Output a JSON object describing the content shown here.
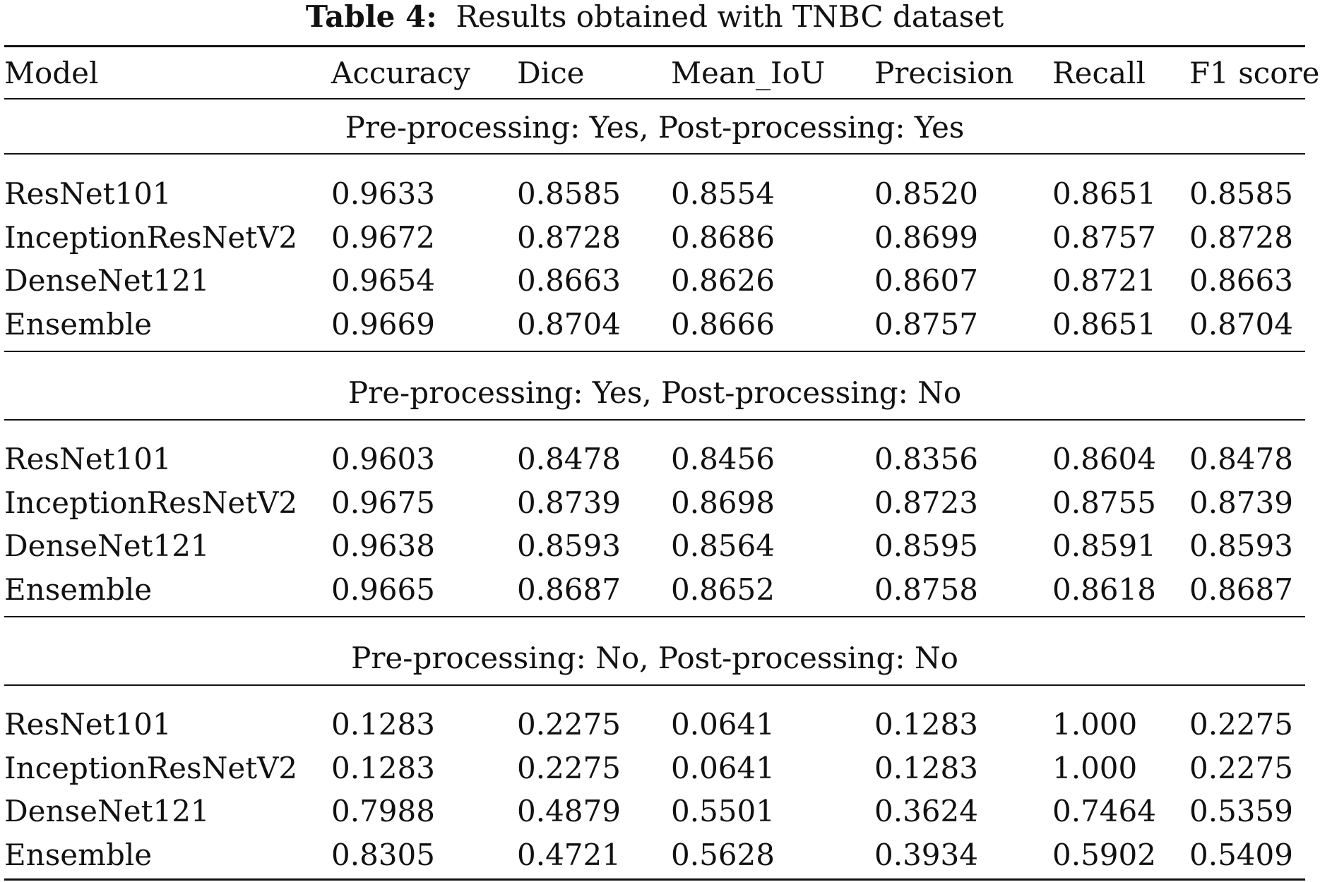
{
  "table": {
    "caption_label": "Table 4:",
    "caption_text": "Results obtained with TNBC dataset",
    "columns": [
      "Model",
      "Accuracy",
      "Dice",
      "Mean_IoU",
      "Precision",
      "Recall",
      "F1 score"
    ],
    "sections": [
      {
        "title": "Pre-processing: Yes, Post-processing: Yes",
        "rows": [
          [
            "ResNet101",
            "0.9633",
            "0.8585",
            "0.8554",
            "0.8520",
            "0.8651",
            "0.8585"
          ],
          [
            "InceptionResNetV2",
            "0.9672",
            "0.8728",
            "0.8686",
            "0.8699",
            "0.8757",
            "0.8728"
          ],
          [
            "DenseNet121",
            "0.9654",
            "0.8663",
            "0.8626",
            "0.8607",
            "0.8721",
            "0.8663"
          ],
          [
            "Ensemble",
            "0.9669",
            "0.8704",
            "0.8666",
            "0.8757",
            "0.8651",
            "0.8704"
          ]
        ]
      },
      {
        "title": "Pre-processing: Yes, Post-processing: No",
        "rows": [
          [
            "ResNet101",
            "0.9603",
            "0.8478",
            "0.8456",
            "0.8356",
            "0.8604",
            "0.8478"
          ],
          [
            "InceptionResNetV2",
            "0.9675",
            "0.8739",
            "0.8698",
            "0.8723",
            "0.8755",
            "0.8739"
          ],
          [
            "DenseNet121",
            "0.9638",
            "0.8593",
            "0.8564",
            "0.8595",
            "0.8591",
            "0.8593"
          ],
          [
            "Ensemble",
            "0.9665",
            "0.8687",
            "0.8652",
            "0.8758",
            "0.8618",
            "0.8687"
          ]
        ]
      },
      {
        "title": "Pre-processing: No, Post-processing: No",
        "rows": [
          [
            "ResNet101",
            "0.1283",
            "0.2275",
            "0.0641",
            "0.1283",
            "1.000",
            "0.2275"
          ],
          [
            "InceptionResNetV2",
            "0.1283",
            "0.2275",
            "0.0641",
            "0.1283",
            "1.000",
            "0.2275"
          ],
          [
            "DenseNet121",
            "0.7988",
            "0.4879",
            "0.5501",
            "0.3624",
            "0.7464",
            "0.5359"
          ],
          [
            "Ensemble",
            "0.8305",
            "0.4721",
            "0.5628",
            "0.3934",
            "0.5902",
            "0.5409"
          ]
        ]
      }
    ]
  }
}
